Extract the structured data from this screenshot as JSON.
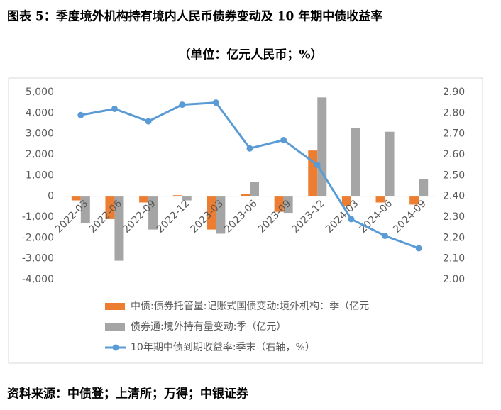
{
  "chart_data": {
    "type": "bar-line",
    "title": "图表 5：季度境外机构持有境内人民币债券变动及 10 年期中债收益率",
    "subtitle": "（单位：亿元人民币；%）",
    "source": "资料来源：中债登；上清所；万得；中银证券",
    "categories": [
      "2022-03",
      "2022-06",
      "2022-09",
      "2022-12",
      "2023-03",
      "2023-06",
      "2023-09",
      "2023-12",
      "2024-03",
      "2024-06",
      "2024-09"
    ],
    "series": [
      {
        "name": "中债:债券托管量:记账式国债变动:境外机构：季（亿元",
        "type": "bar",
        "color": "#ed7d31",
        "values": [
          -200,
          -1100,
          -300,
          50,
          -1600,
          100,
          -750,
          2200,
          -480,
          -300,
          -400
        ]
      },
      {
        "name": "债券通:境外持有量变动:季（亿元）",
        "type": "bar",
        "color": "#a5a5a5",
        "values": [
          -1300,
          -3100,
          -1600,
          -200,
          -1800,
          700,
          -800,
          4750,
          3270,
          3100,
          820
        ]
      },
      {
        "name": "10年期中债到期收益率:季末（右轴，%）",
        "type": "line",
        "axis": "y2",
        "color": "#5b9bd5",
        "values": [
          2.79,
          2.82,
          2.76,
          2.84,
          2.85,
          2.63,
          2.67,
          2.55,
          2.29,
          2.21,
          2.15
        ]
      }
    ],
    "ylim": [
      -4000,
      5000
    ],
    "yticks": [
      {
        "value": -4000,
        "label": "-4,000"
      },
      {
        "value": -3000,
        "label": "-3,000"
      },
      {
        "value": -2000,
        "label": "-2,000"
      },
      {
        "value": -1000,
        "label": "-1,000"
      },
      0,
      {
        "value": 1000,
        "label": "1,000"
      },
      {
        "value": 2000,
        "label": "2,000"
      },
      {
        "value": 3000,
        "label": "3,000"
      },
      {
        "value": 4000,
        "label": "4,000"
      },
      {
        "value": 5000,
        "label": "5,000"
      }
    ],
    "y2lim": [
      2.0,
      2.9
    ],
    "y2ticks": [
      {
        "value": 2.0,
        "label": "2.00"
      },
      {
        "value": 2.1,
        "label": "2.10"
      },
      {
        "value": 2.2,
        "label": "2.20"
      },
      {
        "value": 2.3,
        "label": "2.30"
      },
      {
        "value": 2.4,
        "label": "2.40"
      },
      {
        "value": 2.5,
        "label": "2.50"
      },
      {
        "value": 2.6,
        "label": "2.60"
      },
      {
        "value": 2.7,
        "label": "2.70"
      },
      {
        "value": 2.8,
        "label": "2.80"
      },
      {
        "value": 2.9,
        "label": "2.90"
      }
    ]
  }
}
